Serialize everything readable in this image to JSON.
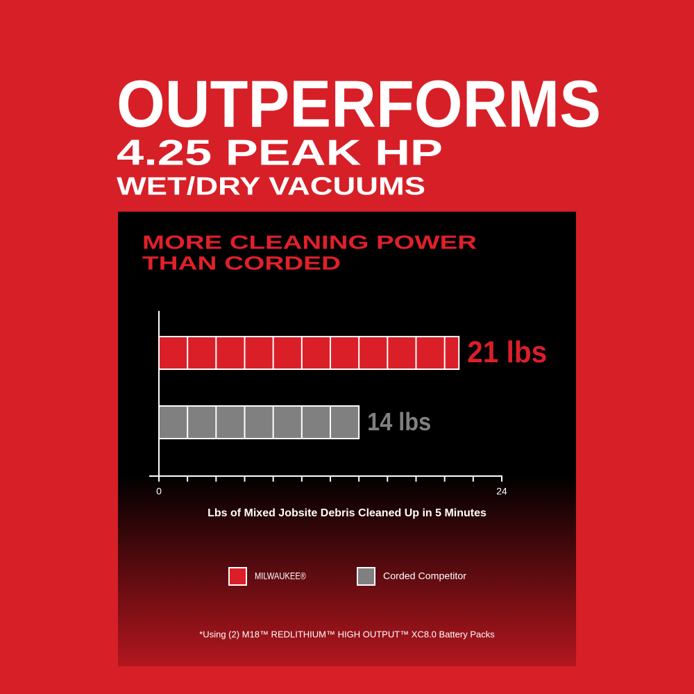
{
  "header": {
    "title": "OUTPERFORMS",
    "subtitle_1": "4.25 PEAK HP",
    "subtitle_2": "WET/DRY VACUUMS"
  },
  "chart_data": {
    "type": "bar",
    "orientation": "horizontal",
    "title": [
      "MORE CLEANING POWER",
      "THAN CORDED"
    ],
    "xlabel": "Lbs of Mixed Jobsite Debris Cleaned Up in 5 Minutes",
    "xlim": [
      0,
      24
    ],
    "xticks": [
      0,
      24
    ],
    "xminorticks": [
      2,
      4,
      6,
      8,
      10,
      12,
      14,
      16,
      18,
      20,
      22
    ],
    "series": [
      {
        "name": "MILWAUKEE®",
        "color": "#db1f29",
        "values": [
          21
        ],
        "value_labels": [
          "21 lbs"
        ]
      },
      {
        "name": "Corded Competitor",
        "color": "#808080",
        "values": [
          14
        ],
        "value_labels": [
          "14 lbs"
        ]
      }
    ],
    "note": "*Using (2) M18™ REDLITHIUM™ HIGH OUTPUT™ XC8.0 Battery Packs"
  }
}
